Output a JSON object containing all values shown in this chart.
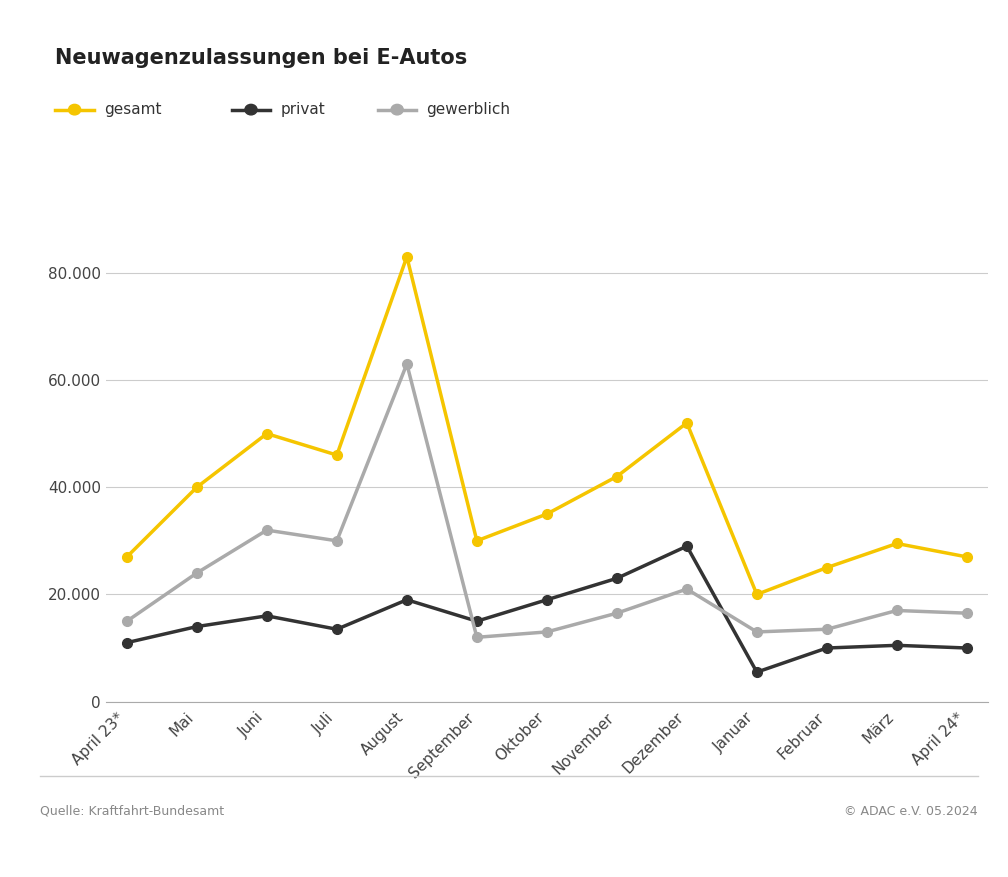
{
  "title": "Neuwagenzulassungen bei E-Autos",
  "categories": [
    "April 23*",
    "Mai",
    "Juni",
    "Juli",
    "August",
    "September",
    "Oktober",
    "November",
    "Dezember",
    "Januar",
    "Februar",
    "März",
    "April 24*"
  ],
  "gesamt": [
    27000,
    40000,
    50000,
    46000,
    83000,
    30000,
    35000,
    42000,
    52000,
    20000,
    25000,
    29500,
    27000
  ],
  "privat": [
    11000,
    14000,
    16000,
    13500,
    19000,
    15000,
    19000,
    23000,
    29000,
    5500,
    10000,
    10500,
    10000
  ],
  "gewerblich": [
    15000,
    24000,
    32000,
    30000,
    63000,
    12000,
    13000,
    16500,
    21000,
    13000,
    13500,
    17000,
    16500
  ],
  "colors": {
    "gesamt": "#f5c500",
    "privat": "#333333",
    "gewerblich": "#aaaaaa"
  },
  "ylim": [
    0,
    90000
  ],
  "yticks": [
    0,
    20000,
    40000,
    60000,
    80000
  ],
  "ytick_labels": [
    "0",
    "20.000",
    "40.000",
    "60.000",
    "80.000"
  ],
  "source_left": "Quelle: Kraftfahrt-Bundesamt",
  "source_right": "© ADAC e.V. 05.2024",
  "background_color": "#ffffff",
  "line_width": 2.5,
  "marker_size": 7
}
